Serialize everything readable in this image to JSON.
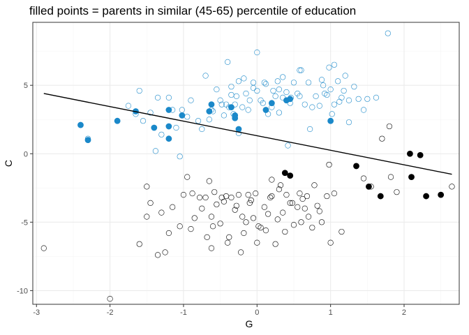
{
  "chart_data": {
    "type": "scatter",
    "title": "filled points = parents in similar (45-65) percentile of education",
    "xlabel": "G",
    "ylabel": "C",
    "xlim": [
      -3.05,
      2.75
    ],
    "ylim": [
      -11.0,
      9.6
    ],
    "x_ticks": [
      -3,
      -2,
      -1,
      0,
      1,
      2
    ],
    "y_ticks": [
      -10,
      -5,
      0,
      5
    ],
    "x_tick_labels": [
      "-3",
      "-2",
      "-1",
      "0",
      "1",
      "2"
    ],
    "y_tick_labels": [
      "-10",
      "-5",
      "0",
      "5"
    ],
    "grid": true,
    "theme": "black-and-white",
    "colors": {
      "blue": "#1a88c9",
      "black": "#000000",
      "line": "#000000",
      "panel_border": "#333333",
      "grid_major": "#ebebeb",
      "grid_minor": "#f5f5f5"
    },
    "regression_line": {
      "x": [
        -2.9,
        2.65
      ],
      "y": [
        4.4,
        -1.5
      ]
    },
    "series": [
      {
        "color": "blue",
        "filled": false,
        "points": [
          [
            -2.3,
            1.1
          ],
          [
            -1.6,
            4.6
          ],
          [
            -1.75,
            3.5
          ],
          [
            -1.65,
            2.9
          ],
          [
            -1.55,
            2.4
          ],
          [
            -1.45,
            3.0
          ],
          [
            -1.35,
            4.1
          ],
          [
            -1.3,
            1.4
          ],
          [
            -1.2,
            4.1
          ],
          [
            -1.15,
            3.2
          ],
          [
            -1.1,
            1.9
          ],
          [
            -1.02,
            3.2
          ],
          [
            -0.95,
            2.7
          ],
          [
            -0.9,
            3.9
          ],
          [
            -0.8,
            2.4
          ],
          [
            -0.75,
            1.8
          ],
          [
            -0.7,
            5.7
          ],
          [
            -0.62,
            3.2
          ],
          [
            -0.55,
            4.7
          ],
          [
            -0.5,
            3.9
          ],
          [
            -0.45,
            2.8
          ],
          [
            -0.42,
            3.6
          ],
          [
            -0.38,
            3.4
          ],
          [
            -0.35,
            4.3
          ],
          [
            -0.32,
            2.9
          ],
          [
            -0.3,
            3.6
          ],
          [
            -0.28,
            4.2
          ],
          [
            -0.25,
            1.5
          ],
          [
            -0.2,
            3.4
          ],
          [
            -0.15,
            4.4
          ],
          [
            -0.1,
            3.9
          ],
          [
            -0.05,
            4.8
          ],
          [
            0.0,
            4.6
          ],
          [
            0.05,
            3.9
          ],
          [
            0.1,
            5.2
          ],
          [
            0.15,
            2.9
          ],
          [
            0.2,
            3.4
          ],
          [
            0.25,
            4.2
          ],
          [
            0.3,
            4.7
          ],
          [
            0.35,
            4.1
          ],
          [
            0.4,
            4.5
          ],
          [
            0.45,
            3.7
          ],
          [
            0.5,
            5.2
          ],
          [
            0.55,
            4.4
          ],
          [
            0.6,
            6.1
          ],
          [
            0.65,
            3.6
          ],
          [
            0.7,
            5.2
          ],
          [
            0.75,
            3.4
          ],
          [
            0.8,
            4.2
          ],
          [
            0.85,
            3.5
          ],
          [
            0.9,
            5.0
          ],
          [
            0.95,
            4.3
          ],
          [
            1.0,
            4.7
          ],
          [
            1.05,
            3.6
          ],
          [
            1.1,
            5.3
          ],
          [
            1.15,
            4.1
          ],
          [
            1.2,
            5.7
          ],
          [
            1.25,
            3.9
          ],
          [
            1.32,
            4.9
          ],
          [
            1.45,
            3.2
          ],
          [
            1.62,
            4.1
          ],
          [
            1.78,
            8.8
          ],
          [
            1.5,
            4.0
          ],
          [
            -0.6,
            3.1
          ],
          [
            -0.4,
            6.7
          ],
          [
            0.0,
            7.4
          ],
          [
            -1.05,
            -0.2
          ],
          [
            -1.38,
            0.2
          ],
          [
            -0.65,
            2.5
          ],
          [
            0.98,
            6.3
          ],
          [
            1.05,
            6.5
          ],
          [
            0.72,
            1.8
          ],
          [
            0.42,
            0.6
          ],
          [
            0.3,
            3.0
          ],
          [
            -0.12,
            3.2
          ],
          [
            -0.18,
            5.5
          ],
          [
            0.12,
            5.1
          ],
          [
            0.22,
            4.6
          ],
          [
            0.35,
            5.6
          ],
          [
            -0.25,
            5.3
          ],
          [
            0.08,
            3.7
          ],
          [
            -0.35,
            4.9
          ],
          [
            0.58,
            6.1
          ],
          [
            0.92,
            4.4
          ],
          [
            1.18,
            4.6
          ],
          [
            1.38,
            4.0
          ],
          [
            -0.05,
            5.2
          ],
          [
            0.46,
            4.1
          ],
          [
            0.88,
            5.4
          ],
          [
            0.28,
            5.3
          ],
          [
            -0.48,
            3.6
          ],
          [
            1.12,
            3.8
          ],
          [
            1.25,
            2.3
          ],
          [
            1.02,
            2.9
          ],
          [
            0.58,
            4.2
          ]
        ]
      },
      {
        "color": "blue",
        "filled": true,
        "points": [
          [
            -2.4,
            2.1
          ],
          [
            -2.3,
            1.0
          ],
          [
            -1.9,
            2.4
          ],
          [
            -1.65,
            3.1
          ],
          [
            -1.4,
            1.9
          ],
          [
            -1.2,
            3.2
          ],
          [
            -1.02,
            2.8
          ],
          [
            -1.2,
            2.0
          ],
          [
            -1.2,
            1.1
          ],
          [
            -0.65,
            3.1
          ],
          [
            -0.62,
            3.6
          ],
          [
            -0.35,
            3.4
          ],
          [
            -0.3,
            2.6
          ],
          [
            -0.25,
            1.8
          ],
          [
            -0.3,
            2.8
          ],
          [
            0.2,
            3.7
          ],
          [
            0.12,
            3.2
          ],
          [
            0.4,
            3.9
          ],
          [
            0.45,
            4.0
          ],
          [
            1.0,
            2.4
          ]
        ]
      },
      {
        "color": "black",
        "filled": false,
        "points": [
          [
            -2.9,
            -6.9
          ],
          [
            -2.0,
            -10.6
          ],
          [
            -1.6,
            -6.6
          ],
          [
            -1.5,
            -2.4
          ],
          [
            -1.45,
            -3.6
          ],
          [
            -1.5,
            -4.6
          ],
          [
            -1.35,
            -7.4
          ],
          [
            -1.25,
            -7.2
          ],
          [
            -1.2,
            -5.8
          ],
          [
            -1.15,
            -3.9
          ],
          [
            -1.05,
            -5.3
          ],
          [
            -1.0,
            -3.0
          ],
          [
            -0.95,
            -1.7
          ],
          [
            -0.9,
            -5.5
          ],
          [
            -0.85,
            -4.7
          ],
          [
            -0.75,
            -4.0
          ],
          [
            -0.7,
            -3.2
          ],
          [
            -0.65,
            -2.0
          ],
          [
            -0.6,
            -5.3
          ],
          [
            -0.55,
            -3.7
          ],
          [
            -0.5,
            -5.1
          ],
          [
            -0.45,
            -3.5
          ],
          [
            -0.4,
            -6.5
          ],
          [
            -0.35,
            -3.2
          ],
          [
            -0.3,
            -4.1
          ],
          [
            -0.25,
            -3.0
          ],
          [
            -0.2,
            -4.6
          ],
          [
            -0.15,
            -5.0
          ],
          [
            -0.1,
            -3.6
          ],
          [
            -0.05,
            -4.7
          ],
          [
            0.0,
            -6.5
          ],
          [
            0.05,
            -5.4
          ],
          [
            0.1,
            -3.9
          ],
          [
            0.15,
            -4.4
          ],
          [
            0.2,
            -3.1
          ],
          [
            0.25,
            -6.6
          ],
          [
            0.3,
            -2.6
          ],
          [
            0.35,
            -4.3
          ],
          [
            0.4,
            -3.0
          ],
          [
            0.45,
            -3.6
          ],
          [
            0.5,
            -5.2
          ],
          [
            0.55,
            -3.9
          ],
          [
            0.6,
            -5.0
          ],
          [
            0.65,
            -4.0
          ],
          [
            0.7,
            -4.6
          ],
          [
            0.75,
            -5.4
          ],
          [
            0.85,
            -4.2
          ],
          [
            0.95,
            -3.1
          ],
          [
            1.0,
            -6.5
          ],
          [
            1.05,
            -2.9
          ],
          [
            1.15,
            -5.7
          ],
          [
            1.45,
            -1.8
          ],
          [
            1.55,
            -2.4
          ],
          [
            1.7,
            1.1
          ],
          [
            1.8,
            2.0
          ],
          [
            1.82,
            -1.7
          ],
          [
            1.9,
            -2.8
          ],
          [
            2.65,
            -2.4
          ],
          [
            0.98,
            -0.8
          ],
          [
            -0.62,
            -6.9
          ],
          [
            -0.22,
            -7.2
          ],
          [
            -0.78,
            -3.2
          ],
          [
            -0.02,
            -2.9
          ],
          [
            0.18,
            -3.2
          ],
          [
            0.82,
            -3.8
          ],
          [
            -0.42,
            -3.1
          ],
          [
            0.38,
            -5.7
          ],
          [
            -0.62,
            -4.6
          ],
          [
            -0.28,
            -3.8
          ],
          [
            0.12,
            -5.6
          ],
          [
            0.68,
            -3.1
          ],
          [
            -0.88,
            -2.9
          ],
          [
            -0.18,
            -5.8
          ],
          [
            0.02,
            -5.3
          ],
          [
            0.58,
            -2.9
          ],
          [
            0.28,
            -4.8
          ],
          [
            -0.58,
            -2.8
          ],
          [
            -0.38,
            -6.1
          ],
          [
            -0.08,
            -3.4
          ],
          [
            0.48,
            -3.6
          ],
          [
            -1.3,
            -4.3
          ],
          [
            -0.68,
            -6.1
          ],
          [
            0.78,
            -2.3
          ],
          [
            0.88,
            -5.0
          ],
          [
            -0.48,
            -3.2
          ],
          [
            0.2,
            -1.9
          ],
          [
            0.62,
            -3.3
          ],
          [
            -0.12,
            -3.0
          ],
          [
            0.32,
            -2.3
          ]
        ]
      },
      {
        "color": "black",
        "filled": true,
        "points": [
          [
            0.38,
            -1.4
          ],
          [
            0.45,
            -1.6
          ],
          [
            1.35,
            -0.9
          ],
          [
            1.52,
            -2.4
          ],
          [
            1.68,
            -3.1
          ],
          [
            2.08,
            0.0
          ],
          [
            2.22,
            -0.1
          ],
          [
            2.1,
            -1.7
          ],
          [
            2.3,
            -3.1
          ],
          [
            2.5,
            -3.0
          ]
        ]
      }
    ]
  }
}
